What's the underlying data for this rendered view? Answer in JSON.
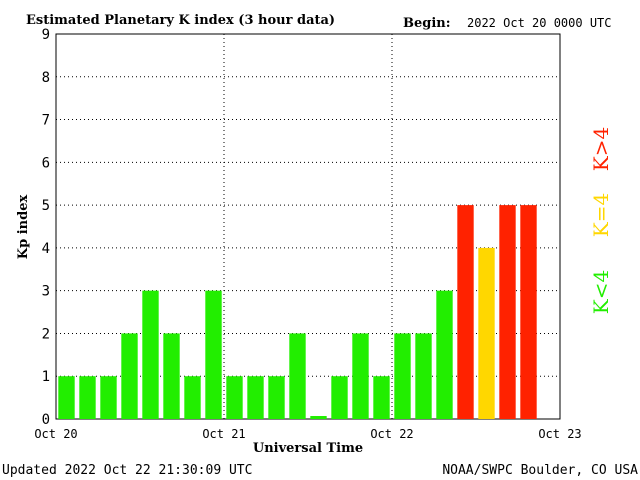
{
  "header": {
    "title": "Estimated Planetary K index (3 hour data)",
    "begin_label": "Begin:",
    "begin_value": "2022 Oct 20 0000 UTC"
  },
  "footer": {
    "updated": "Updated 2022 Oct 22 21:30:09 UTC",
    "source": "NOAA/SWPC Boulder, CO USA"
  },
  "legend": {
    "green_label": "K<4",
    "yellow_label": "K=4",
    "red_label": "K>4"
  },
  "colors": {
    "green": "#22ee00",
    "yellow": "#ffd700",
    "red": "#ff2200"
  },
  "chart_data": {
    "type": "bar",
    "xlabel": "Universal Time",
    "ylabel": "Kp index",
    "ylim": [
      0,
      9
    ],
    "yticks": [
      "0",
      "1",
      "2",
      "3",
      "4",
      "5",
      "6",
      "7",
      "8",
      "9"
    ],
    "x_tick_labels": [
      "Oct 20",
      "Oct 21",
      "Oct 22",
      "Oct 23"
    ],
    "grid": true,
    "values": [
      1,
      1,
      1,
      2,
      3,
      2,
      1,
      3,
      1,
      1,
      1,
      2,
      0.07,
      1,
      2,
      1,
      2,
      2,
      3,
      5,
      4,
      5,
      5
    ]
  }
}
